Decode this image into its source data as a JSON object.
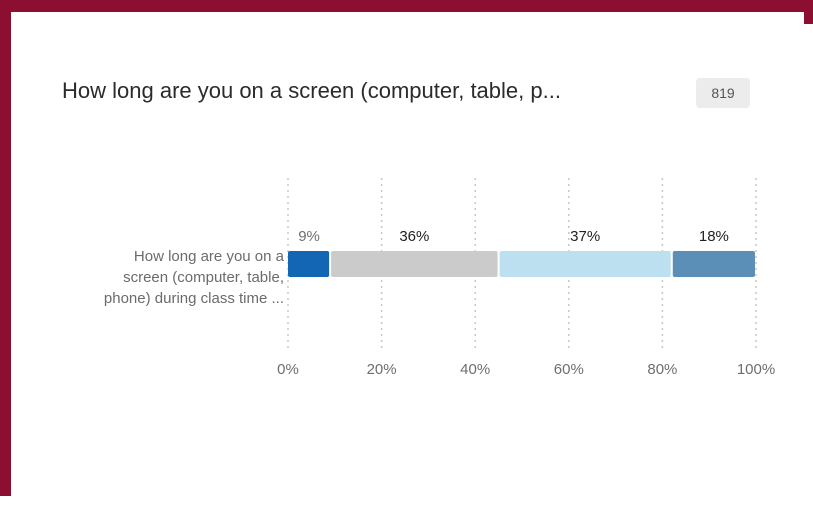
{
  "title": "How long are you on a screen (computer, table, p...",
  "response_count": "819",
  "chart_data": {
    "type": "bar",
    "orientation": "horizontal",
    "stacked": "percent",
    "categories": [
      "How long are you on a screen (computer, table, phone) during class time ..."
    ],
    "category_label_lines": [
      "How long are you on a",
      "screen (computer, table,",
      "phone) during class time ..."
    ],
    "series": [
      {
        "values": [
          9
        ],
        "label": "9%",
        "color": "#1266b4"
      },
      {
        "values": [
          36
        ],
        "label": "36%",
        "color": "#cbcbcb"
      },
      {
        "values": [
          37
        ],
        "label": "37%",
        "color": "#bde0f1"
      },
      {
        "values": [
          18
        ],
        "label": "18%",
        "color": "#5b8fb8"
      }
    ],
    "xlim": [
      0,
      100
    ],
    "x_ticks": [
      "0%",
      "20%",
      "40%",
      "60%",
      "80%",
      "100%"
    ],
    "grid": true,
    "grid_style": "dotted"
  }
}
